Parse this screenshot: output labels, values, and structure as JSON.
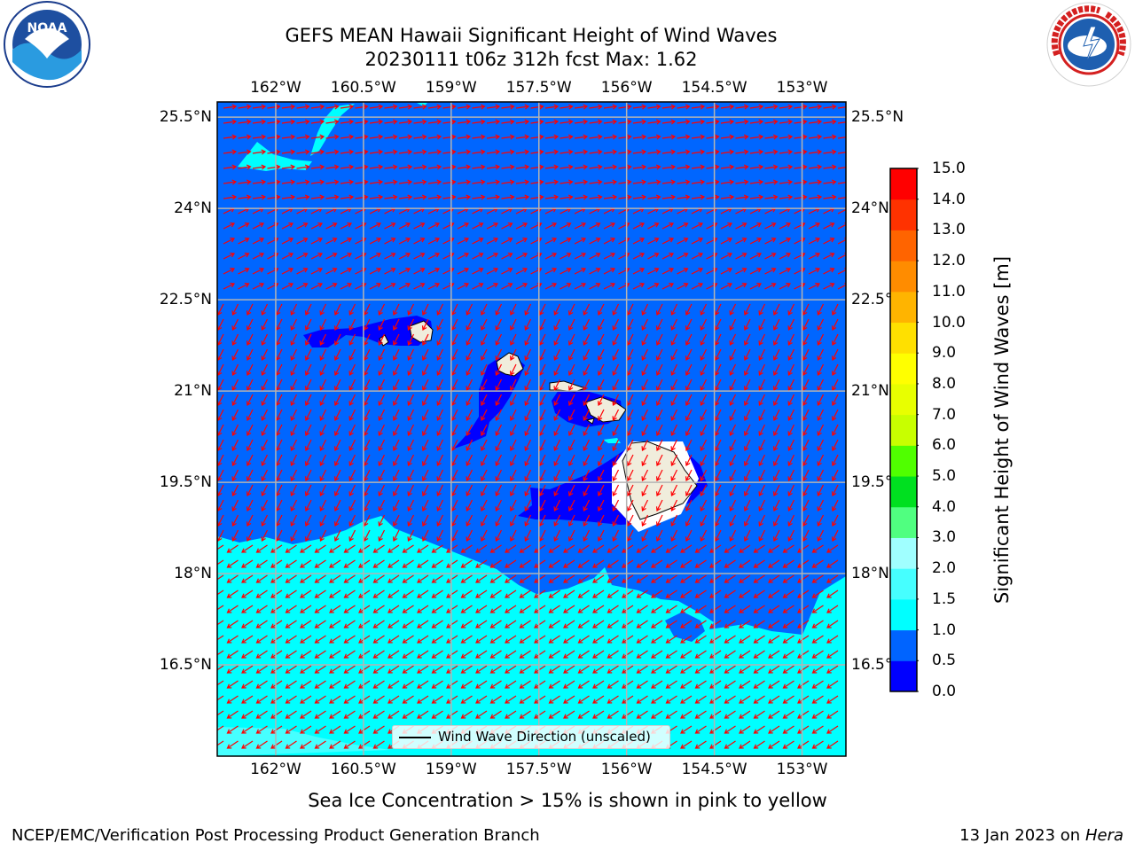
{
  "title": {
    "line1": "GEFS MEAN Hawaii Significant Height of Wind Waves",
    "line2": "20230111 t06z 312h fcst   Max: 1.62"
  },
  "logos": {
    "left": "NOAA",
    "right": "NATIONAL WEATHER SERVICE"
  },
  "map": {
    "lon_ticks": [
      "162°W",
      "160.5°W",
      "159°W",
      "157.5°W",
      "156°W",
      "154.5°W",
      "153°W"
    ],
    "lon_values": [
      -162,
      -160.5,
      -159,
      -157.5,
      -156,
      -154.5,
      -153
    ],
    "lat_ticks": [
      "25.5°N",
      "24°N",
      "22.5°N",
      "21°N",
      "19.5°N",
      "18°N",
      "16.5°N"
    ],
    "lat_values": [
      25.5,
      24,
      22.5,
      21,
      19.5,
      18,
      16.5
    ],
    "lon_range": [
      -163,
      -152.25
    ],
    "lat_range": [
      15.0,
      25.75
    ],
    "legend": "Wind Wave Direction (unscaled)",
    "colors": {
      "band_0_05": "#0000ff",
      "band_05_10": "#0066ff",
      "band_15_20": "#00ffff",
      "land": "#f0eddc",
      "arrows": "#ff0000",
      "grid": "#b4b4b4"
    }
  },
  "colorbar": {
    "label": "Significant Height of Wind Waves [m]",
    "levels": [
      0.0,
      0.5,
      1.0,
      1.5,
      2.0,
      3.0,
      4.0,
      5.0,
      6.0,
      7.0,
      8.0,
      9.0,
      10.0,
      11.0,
      12.0,
      13.0,
      14.0,
      15.0
    ],
    "tick_labels": [
      "0.0",
      "0.5",
      "1.0",
      "1.5",
      "2.0",
      "3.0",
      "4.0",
      "5.0",
      "6.0",
      "7.0",
      "8.0",
      "9.0",
      "10.0",
      "11.0",
      "12.0",
      "13.0",
      "14.0",
      "15.0"
    ],
    "colors": [
      "#0000ff",
      "#0064ff",
      "#00ffff",
      "#46ffff",
      "#a0ffff",
      "#50ff80",
      "#00e020",
      "#50ff00",
      "#c8ff00",
      "#e8ff00",
      "#ffff00",
      "#ffe000",
      "#ffb400",
      "#ff8c00",
      "#ff6400",
      "#ff3200",
      "#ff0000"
    ]
  },
  "ice_note": "Sea Ice Concentration > 15% is shown in pink to yellow",
  "footer": {
    "left": "NCEP/EMC/Verification Post Processing Product Generation Branch",
    "right_prefix": "13 Jan 2023 on ",
    "right_host": "Hera"
  }
}
